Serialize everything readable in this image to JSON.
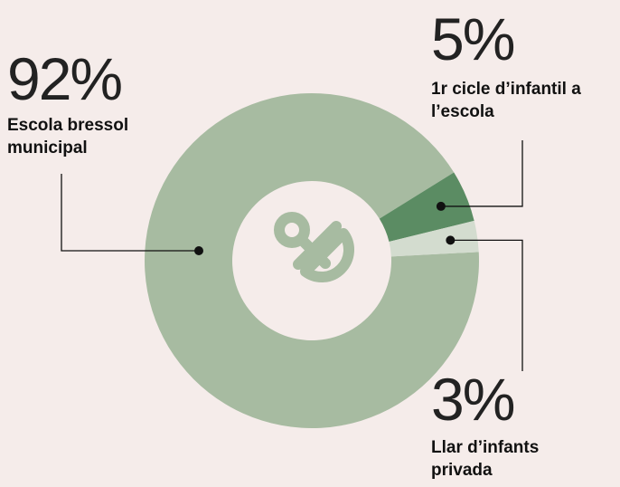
{
  "chart_data": {
    "type": "donut",
    "categories": [
      "Escola bressol municipal",
      "1r cicle d’infantil a l’escola",
      "Llar d’infants privada"
    ],
    "values": [
      92,
      5,
      3
    ],
    "value_labels": [
      "92%",
      "5%",
      "3%"
    ],
    "colors": [
      "#a7bba1",
      "#5b8c63",
      "#d3dccf"
    ]
  }
}
